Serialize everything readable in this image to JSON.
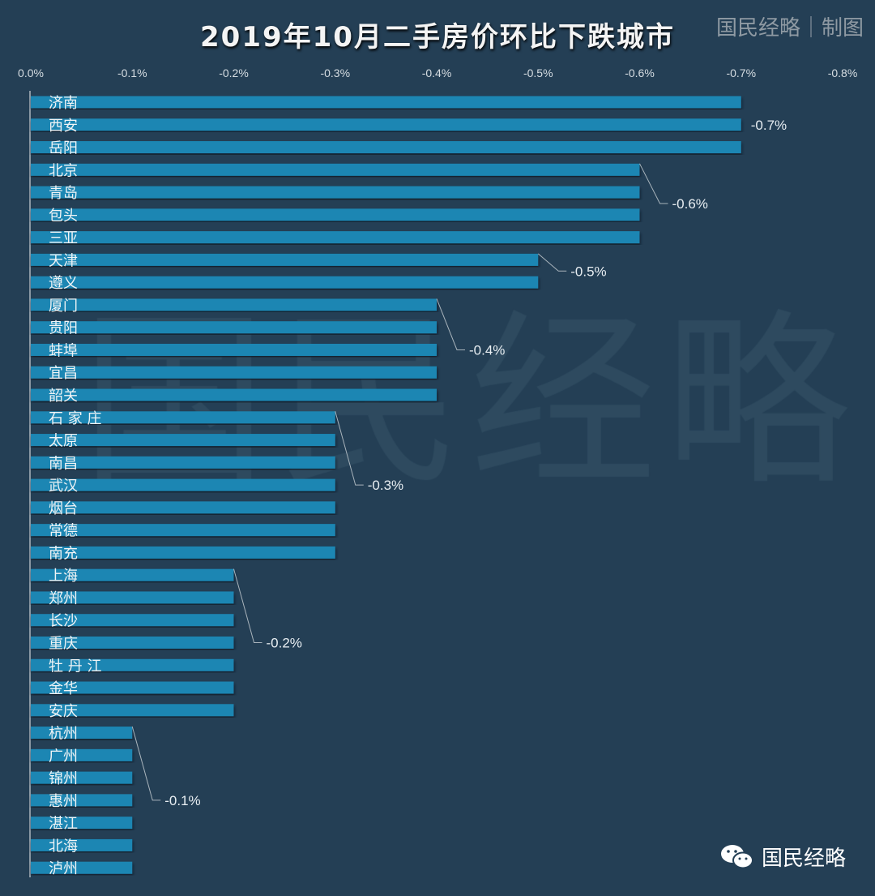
{
  "chart_data": {
    "type": "bar",
    "orientation": "horizontal",
    "title": "2019年10月二手房价环比下跌城市",
    "categories": [
      "济南",
      "西安",
      "岳阳",
      "北京",
      "青岛",
      "包头",
      "三亚",
      "天津",
      "遵义",
      "厦门",
      "贵阳",
      "蚌埠",
      "宜昌",
      "韶关",
      "石 家 庄",
      "太原",
      "南昌",
      "武汉",
      "烟台",
      "常德",
      "南充",
      "上海",
      "郑州",
      "长沙",
      "重庆",
      "牡 丹 江",
      "金华",
      "安庆",
      "杭州",
      "广州",
      "锦州",
      "惠州",
      "湛江",
      "北海",
      "泸州"
    ],
    "values": [
      -0.7,
      -0.7,
      -0.7,
      -0.6,
      -0.6,
      -0.6,
      -0.6,
      -0.5,
      -0.5,
      -0.4,
      -0.4,
      -0.4,
      -0.4,
      -0.4,
      -0.3,
      -0.3,
      -0.3,
      -0.3,
      -0.3,
      -0.3,
      -0.3,
      -0.2,
      -0.2,
      -0.2,
      -0.2,
      -0.2,
      -0.2,
      -0.2,
      -0.1,
      -0.1,
      -0.1,
      -0.1,
      -0.1,
      -0.1,
      -0.1
    ],
    "unit": "%",
    "xlim": [
      0,
      -0.8
    ],
    "x_axis_position": "top",
    "xticks": [
      "0.0%",
      "-0.1%",
      "-0.2%",
      "-0.3%",
      "-0.4%",
      "-0.5%",
      "-0.6%",
      "-0.7%",
      "-0.8%"
    ],
    "group_labels": [
      "-0.7%",
      "-0.6%",
      "-0.5%",
      "-0.4%",
      "-0.3%",
      "-0.2%",
      "-0.1%"
    ],
    "grid": false,
    "colors": {
      "bar": "#1a86b3",
      "background": "#243f55",
      "text": "#e8eef2"
    }
  },
  "brand": "国民经略｜制图",
  "watermark": "国民经略",
  "footer": {
    "icon": "wechat-icon",
    "text": "国民经略"
  }
}
